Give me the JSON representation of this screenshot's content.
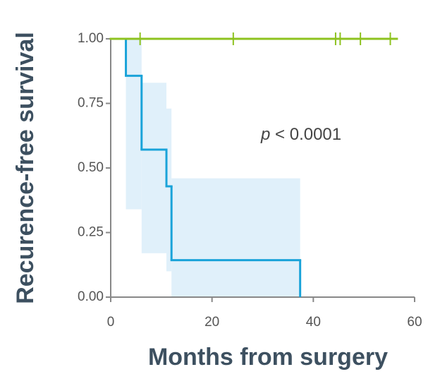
{
  "chart_data": {
    "type": "step",
    "ylabel": "Recurence-free survival",
    "xlabel": "Months from surgery",
    "annotation": {
      "italic": "p",
      "text": "< 0.0001"
    },
    "xlim": [
      0,
      60
    ],
    "xticks": [
      0,
      20,
      40,
      60
    ],
    "ylim": [
      0,
      1
    ],
    "yticks": [
      {
        "value": 0,
        "label": "0.00"
      },
      {
        "value": 0.25,
        "label": "0.25"
      },
      {
        "value": 0.5,
        "label": "0.50"
      },
      {
        "value": 0.75,
        "label": "0.75"
      },
      {
        "value": 1,
        "label": "1.00"
      }
    ],
    "bands": [
      {
        "color": "#e0f0fa",
        "x0": [
          3,
          6.1,
          11,
          12
        ],
        "x1": [
          6.1,
          11,
          12,
          37.4
        ],
        "lower": [
          0.34,
          0.17,
          0.1,
          0
        ],
        "upper": [
          1,
          0.83,
          0.73,
          0.46
        ]
      }
    ],
    "series": [
      {
        "color": "#1aa3d9",
        "x": [
          0,
          3,
          6.1,
          11,
          12,
          37.4
        ],
        "values": [
          1,
          0.857,
          0.571,
          0.429,
          0.143,
          0
        ],
        "censor_x": []
      },
      {
        "color": "#8dc21f",
        "x": [
          0,
          56.5
        ],
        "values": [
          1,
          1
        ],
        "censor_x": [
          5.8,
          24.2,
          44.4,
          45.3,
          49.3,
          55.2
        ]
      }
    ]
  }
}
